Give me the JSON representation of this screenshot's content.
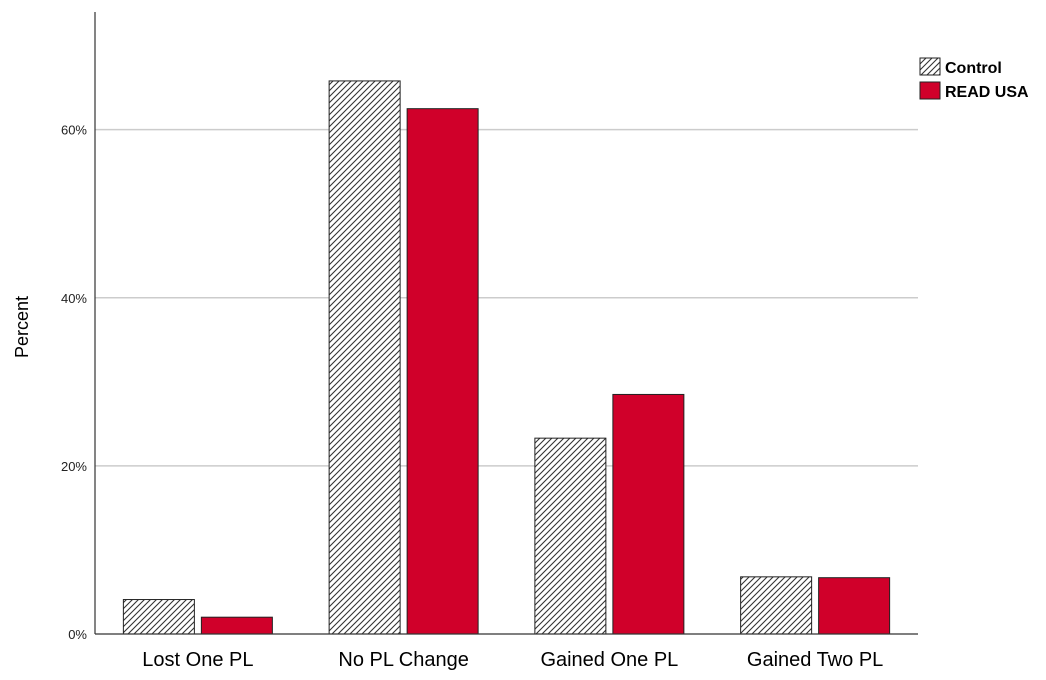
{
  "chart_data": {
    "type": "bar",
    "title": "",
    "xlabel": "",
    "ylabel": "Percent",
    "ylim": [
      0,
      74
    ],
    "yticks": [
      0,
      20,
      40,
      60
    ],
    "ytick_labels": [
      "0%",
      "20%",
      "40%",
      "60%"
    ],
    "grid": true,
    "legend_position": "top-right",
    "categories": [
      "Lost One PL",
      "No PL Change",
      "Gained One PL",
      "Gained Two PL"
    ],
    "series": [
      {
        "name": "Control",
        "values": [
          4.1,
          65.8,
          23.3,
          6.8
        ],
        "fill": "hatched",
        "color": "#ffffff",
        "hatch_color": "#333333"
      },
      {
        "name": "READ USA",
        "values": [
          2.0,
          62.5,
          28.5,
          6.7
        ],
        "fill": "solid",
        "color": "#d0002a"
      }
    ],
    "colors": {
      "gridline": "#cccccc",
      "axis": "#333333",
      "bar_stroke": "#222222"
    }
  }
}
